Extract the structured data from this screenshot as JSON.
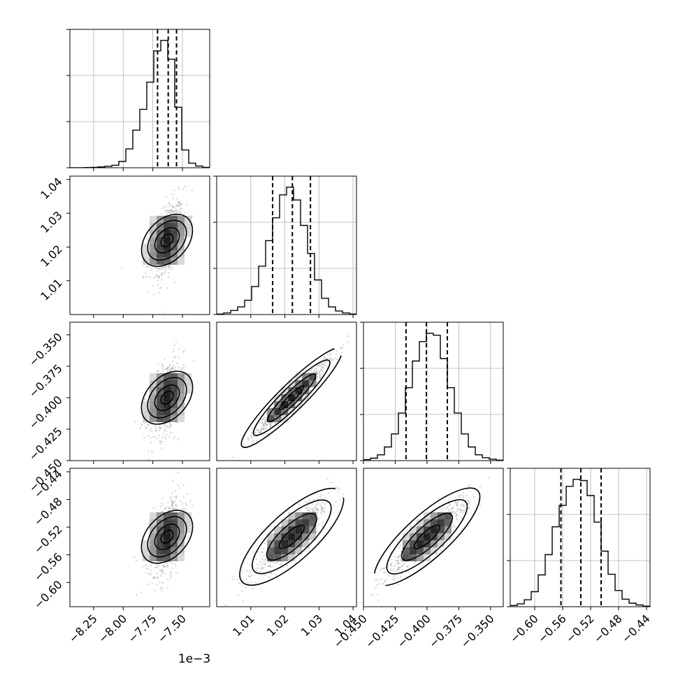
{
  "chart_data": {
    "type": "corner",
    "grid": true,
    "offset_label": "1e−3",
    "parameters": [
      {
        "range": [
          -8.45,
          -7.27
        ],
        "ticks": [
          -8.25,
          -8.0,
          -7.75,
          -7.5
        ],
        "tick_labels": [
          "−8.25",
          "−8.00",
          "−7.75",
          "−7.50"
        ],
        "quantiles": [
          -7.71,
          -7.62,
          -7.55
        ],
        "mean": -7.63,
        "sd": 0.07
      },
      {
        "range": [
          1.0,
          1.041
        ],
        "ticks": [
          1.01,
          1.02,
          1.03,
          1.04
        ],
        "tick_labels": [
          "1.01",
          "1.02",
          "1.03",
          "1.04"
        ],
        "quantiles": [
          1.0164,
          1.0222,
          1.0275
        ],
        "mean": 1.022,
        "sd": 0.0058
      },
      {
        "range": [
          -0.45,
          -0.34
        ],
        "ticks": [
          -0.45,
          -0.425,
          -0.4,
          -0.375,
          -0.35
        ],
        "tick_labels": [
          "−0.450",
          "−0.425",
          "−0.400",
          "−0.375",
          "−0.350"
        ],
        "quantiles": [
          -0.4165,
          -0.4005,
          -0.384
        ],
        "mean": -0.4,
        "sd": 0.016
      },
      {
        "range": [
          -0.635,
          -0.435
        ],
        "ticks": [
          -0.6,
          -0.56,
          -0.52,
          -0.48,
          -0.44
        ],
        "tick_labels": [
          "−0.60",
          "−0.56",
          "−0.52",
          "−0.48",
          "−0.44"
        ],
        "quantiles": [
          -0.5625,
          -0.534,
          -0.505
        ],
        "mean": -0.534,
        "sd": 0.029
      }
    ],
    "histograms": [
      [
        0,
        0,
        1,
        2,
        4,
        7,
        12,
        30,
        90,
        180,
        280,
        410,
        560,
        610,
        520,
        290,
        85,
        22,
        8,
        2
      ],
      [
        1,
        3,
        8,
        15,
        28,
        55,
        95,
        145,
        190,
        235,
        250,
        225,
        175,
        120,
        68,
        32,
        15,
        7,
        3,
        1
      ],
      [
        2,
        5,
        12,
        28,
        55,
        98,
        150,
        205,
        245,
        262,
        258,
        210,
        150,
        98,
        55,
        28,
        12,
        6,
        3,
        1
      ],
      [
        2,
        5,
        12,
        26,
        55,
        90,
        138,
        175,
        208,
        220,
        218,
        192,
        146,
        96,
        56,
        28,
        13,
        6,
        3,
        1
      ]
    ],
    "correlations": [
      [
        1.0,
        0.45,
        0.45,
        0.45
      ],
      [
        0.45,
        1.0,
        0.97,
        0.9
      ],
      [
        0.45,
        0.97,
        1.0,
        0.92
      ],
      [
        0.45,
        0.9,
        0.92,
        1.0
      ]
    ]
  }
}
